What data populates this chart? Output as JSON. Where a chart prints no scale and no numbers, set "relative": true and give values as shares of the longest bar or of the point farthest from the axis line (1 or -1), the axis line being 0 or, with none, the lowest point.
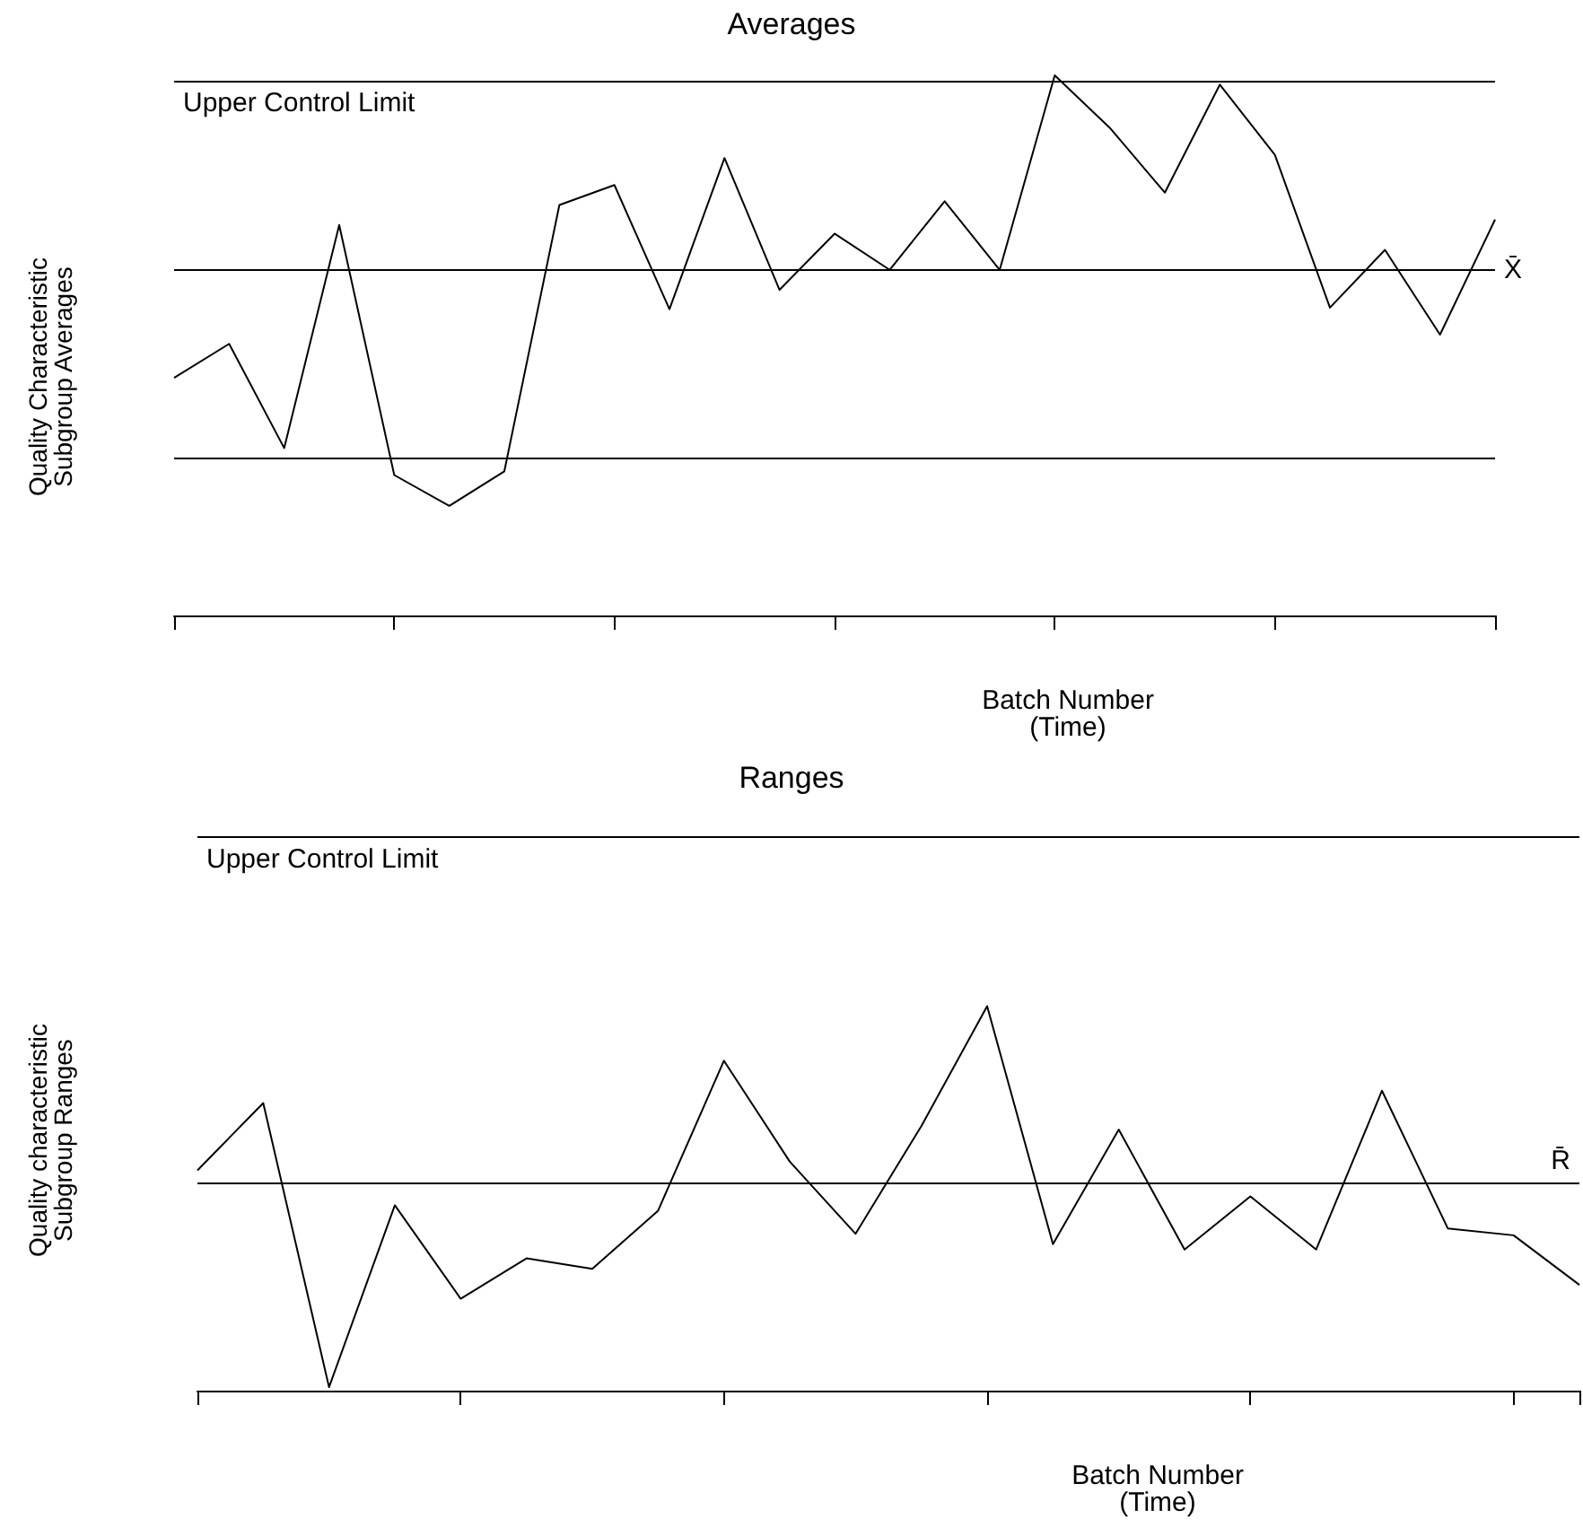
{
  "chart_data": [
    {
      "type": "line",
      "title": "Averages",
      "xlabel": "Batch Number\n(Time)",
      "ylabel": "Quality Characteristic\nSubgroup Averages",
      "relative": true,
      "tick_labels": false,
      "grid": false,
      "marker": "none",
      "line_style": "solid",
      "categories": [
        null,
        null,
        null,
        null,
        null,
        null,
        null,
        null,
        null,
        null,
        null,
        null,
        null,
        null,
        null,
        null,
        null,
        null,
        null,
        null,
        null,
        null,
        null,
        null,
        null
      ],
      "series": [
        {
          "color": "#000000",
          "values": [
            0.44,
            0.503,
            0.31,
            0.723,
            0.26,
            0.203,
            0.267,
            0.76,
            0.797,
            0.567,
            0.847,
            0.603,
            0.707,
            0.64,
            0.767,
            0.64,
            1.0,
            0.903,
            0.783,
            0.983,
            0.853,
            0.57,
            0.677,
            0.52,
            0.733
          ]
        }
      ],
      "ref_lines": [
        {
          "axis": "y",
          "value": 0.987,
          "label": "Upper Control Limit",
          "color": "#000000"
        },
        {
          "axis": "y",
          "value": 0.637,
          "label": "X̄",
          "color": "#000000"
        },
        {
          "axis": "y",
          "value": 0.293,
          "label": null,
          "color": "#000000"
        }
      ]
    },
    {
      "type": "line",
      "title": "Ranges",
      "xlabel": "Batch Number\n(Time)",
      "ylabel": "Quality characteristic\nSubgroup Ranges",
      "relative": true,
      "tick_labels": false,
      "grid": false,
      "marker": "none",
      "line_style": "solid",
      "categories": [
        null,
        null,
        null,
        null,
        null,
        null,
        null,
        null,
        null,
        null,
        null,
        null,
        null,
        null,
        null,
        null,
        null,
        null,
        null,
        null,
        null,
        null
      ],
      "series": [
        {
          "color": "#000000",
          "values": [
            0.573,
            0.748,
            0.009,
            0.482,
            0.239,
            0.344,
            0.317,
            0.468,
            0.858,
            0.596,
            0.408,
            0.688,
            1.0,
            0.381,
            0.679,
            0.367,
            0.505,
            0.367,
            0.78,
            0.422,
            0.404,
            0.275
          ]
        }
      ],
      "ref_lines": [
        {
          "axis": "y",
          "value": 1.436,
          "label": "Upper Control Limit",
          "color": "#000000"
        },
        {
          "axis": "y",
          "value": 0.537,
          "label": "R̄",
          "color": "#000000"
        }
      ]
    }
  ]
}
